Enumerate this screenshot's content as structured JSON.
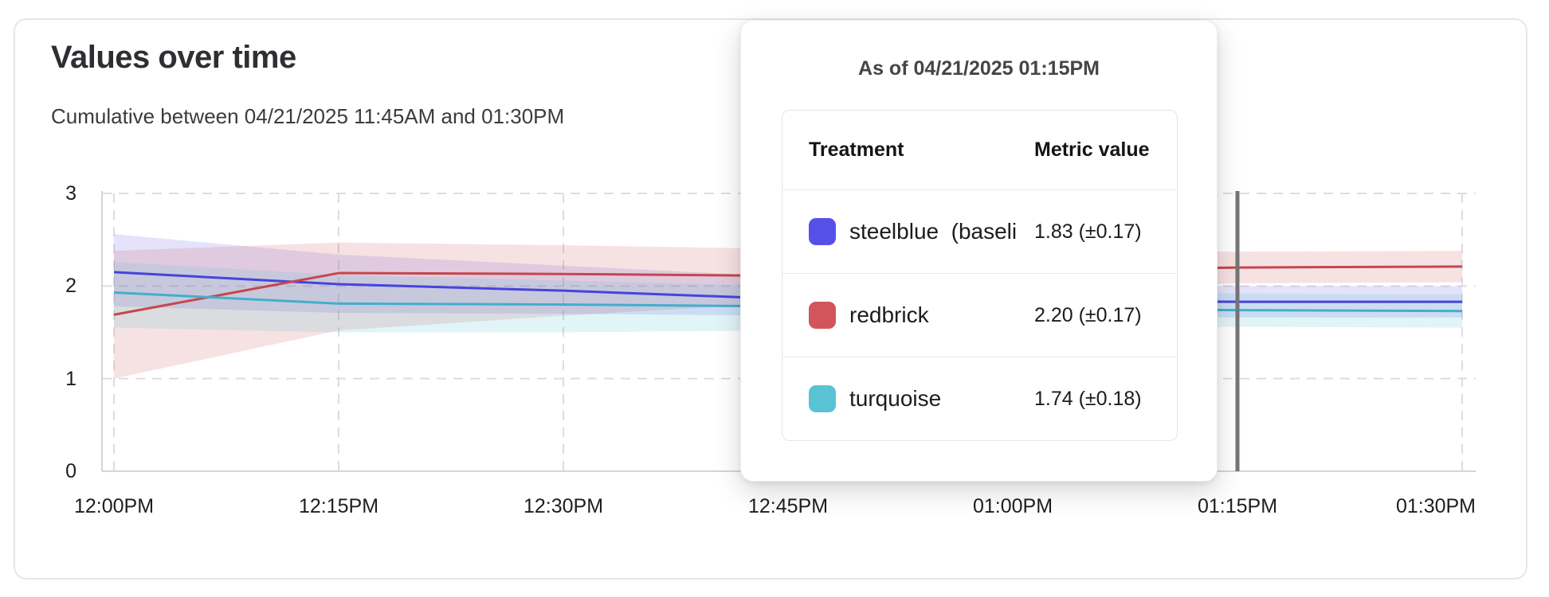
{
  "card": {
    "title": "Values over time",
    "subtitle": "Cumulative between 04/21/2025 11:45AM and 01:30PM",
    "border_color": "#e7e7ea"
  },
  "tooltip": {
    "title": "As of 04/21/2025 01:15PM",
    "columns": {
      "treatment": "Treatment",
      "metric": "Metric value"
    },
    "rows": [
      {
        "treatment": "steelblue  (baseli",
        "value": "1.83 (±0.17)",
        "swatch": "#5551E8"
      },
      {
        "treatment": "redbrick",
        "value": "2.20 (±0.17)",
        "swatch": "#D2555B"
      },
      {
        "treatment": "turquoise",
        "value": "1.74 (±0.18)",
        "swatch": "#59C3D3"
      }
    ]
  },
  "chart_data": {
    "type": "line",
    "title": "Values over time",
    "subtitle": "Cumulative between 04/21/2025 11:45AM and 01:30PM",
    "x_tick_labels": [
      "12:00PM",
      "12:15PM",
      "12:30PM",
      "12:45PM",
      "01:00PM",
      "01:15PM",
      "01:30PM"
    ],
    "y_tick_labels": [
      "0",
      "1",
      "2",
      "3"
    ],
    "ylim": [
      0,
      3
    ],
    "grid": "dashed",
    "grid_color": "#dddddf",
    "axis_color": "#d4d4d8",
    "legend_position": "none",
    "hover": {
      "x_label": "01:15PM",
      "x_index": 5,
      "line_color": "#757575"
    },
    "series": [
      {
        "key": "steelblue",
        "name": "steelblue  (baseli",
        "line_color": "#4643DE",
        "band_color": "rgba(86,82,232,0.16)",
        "values": [
          2.15,
          2.02,
          1.95,
          1.86,
          1.84,
          1.83,
          1.83
        ],
        "band_lower": [
          1.78,
          1.71,
          1.7,
          1.68,
          1.67,
          1.66,
          1.66
        ],
        "band_upper": [
          2.56,
          2.34,
          2.22,
          2.1,
          2.03,
          2.0,
          2.0
        ]
      },
      {
        "key": "redbrick",
        "name": "redbrick",
        "line_color": "#C4474B",
        "band_color": "rgba(205,85,90,0.17)",
        "values": [
          1.69,
          2.14,
          2.13,
          2.11,
          2.16,
          2.2,
          2.21
        ],
        "band_lower": [
          1.0,
          1.52,
          1.68,
          1.82,
          1.93,
          2.03,
          2.04
        ],
        "band_upper": [
          2.38,
          2.47,
          2.44,
          2.4,
          2.39,
          2.37,
          2.38
        ]
      },
      {
        "key": "turquoise",
        "name": "turquoise",
        "line_color": "#43AECB",
        "band_color": "rgba(86,196,210,0.18)",
        "values": [
          1.93,
          1.81,
          1.8,
          1.78,
          1.76,
          1.74,
          1.73
        ],
        "band_lower": [
          1.55,
          1.5,
          1.5,
          1.52,
          1.54,
          1.56,
          1.55
        ],
        "band_upper": [
          2.26,
          2.12,
          2.06,
          2.0,
          1.95,
          1.92,
          1.91
        ]
      }
    ]
  }
}
